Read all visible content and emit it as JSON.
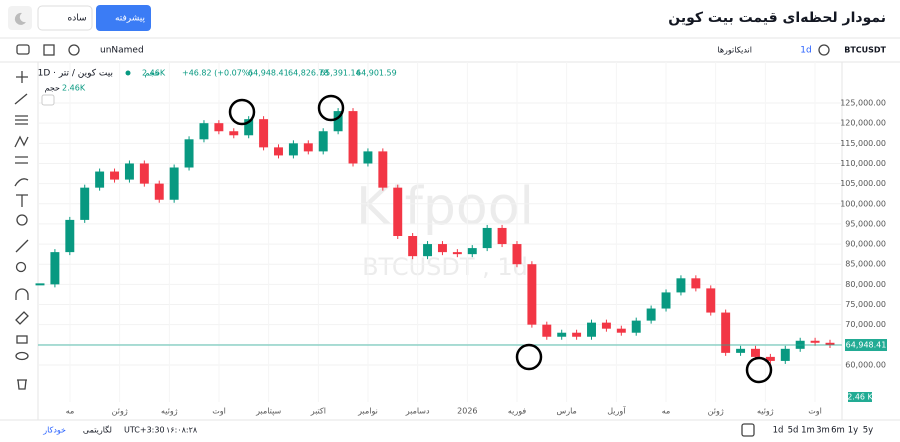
{
  "header": {
    "title": "نمودار لحظه‌ای قیمت بیت کوین",
    "advanced": "پیشرفته",
    "simple": "ساده"
  },
  "toolbar": {
    "symbol": "BTCUSDT",
    "interval": "1d",
    "indicators": "اندیکاتورها",
    "layout": "unNamed"
  },
  "legend": {
    "name": "1D · بیت کوین / تتر",
    "open": "64,901.59",
    "high": "65,391.14",
    "low": "64,826.78",
    "close": "64,948.41",
    "change": "+46.82 (+0.07%)",
    "volume_label": "حجم",
    "volume": "2.46K"
  },
  "watermark": {
    "brand": "Kifpool",
    "symbol": "BTCUSDT , 1d"
  },
  "chart_data": {
    "type": "candlestick",
    "up_color": "#089981",
    "down_color": "#f23645",
    "closes": [
      80000,
      88000,
      96000,
      104000,
      108000,
      106000,
      110000,
      105000,
      101000,
      109000,
      116000,
      120000,
      118000,
      117000,
      121000,
      114000,
      112000,
      115000,
      113000,
      118000,
      123000,
      110000,
      113000,
      104000,
      92000,
      87000,
      90000,
      88000,
      87500,
      89000,
      94000,
      90000,
      85000,
      70000,
      67000,
      68000,
      67000,
      70500,
      69000,
      68000,
      71000,
      74000,
      78000,
      81500,
      79000,
      73000,
      63000,
      64000,
      62000,
      61000,
      64000,
      66000,
      65500,
      64948.41
    ],
    "x_labels": [
      "مه",
      "ژوئن",
      "ژوئیه",
      "اوت",
      "سپتامبر",
      "اکتبر",
      "نوامبر",
      "دسامبر",
      "2026",
      "فوریه",
      "مارس",
      "آوریل",
      "مه",
      "ژوئن",
      "ژوئیه",
      "اوت"
    ],
    "ylim": [
      51300,
      133200
    ],
    "yticks": [
      {
        "value": 60000,
        "label": "60,000.00"
      },
      {
        "value": 65000,
        "label": "65,000.00"
      },
      {
        "value": 70000,
        "label": "70,000.00"
      },
      {
        "value": 75000,
        "label": "75,000.00"
      },
      {
        "value": 80000,
        "label": "80,000.00"
      },
      {
        "value": 85000,
        "label": "85,000.00"
      },
      {
        "value": 90000,
        "label": "90,000.00"
      },
      {
        "value": 95000,
        "label": "95,000.00"
      },
      {
        "value": 100000,
        "label": "100,000.00"
      },
      {
        "value": 105000,
        "label": "105,000.00"
      },
      {
        "value": 110000,
        "label": "110,000.00"
      },
      {
        "value": 115000,
        "label": "115,000.00"
      },
      {
        "value": 120000,
        "label": "120,000.00"
      },
      {
        "value": 125000,
        "label": "125,000.00"
      }
    ],
    "last_price": {
      "value": 64948.41,
      "label": "64,948.41"
    },
    "volume_badge": "2.46 K"
  },
  "footer": {
    "ranges": [
      "1d",
      "5d",
      "1m",
      "3m",
      "6m",
      "1y",
      "5y"
    ],
    "timezone": "UTC+3:30",
    "time": "۱۶:۰۸:۲۸",
    "log": "لگاریتمی",
    "auto": "خودکار"
  }
}
